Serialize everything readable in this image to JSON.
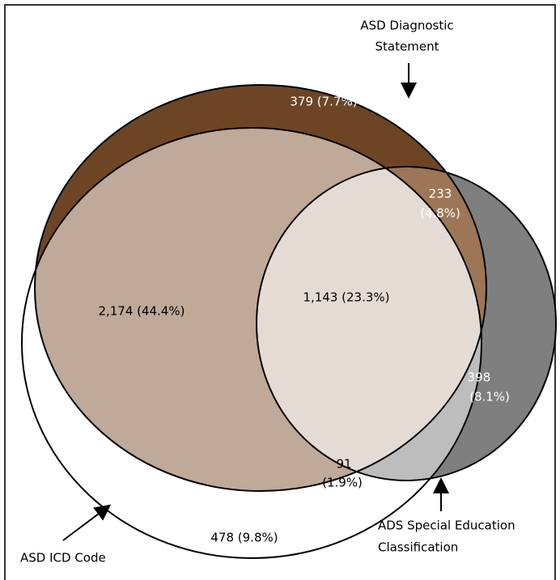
{
  "sets": [
    {
      "lines": [
        "ASD Diagnostic",
        "Statement"
      ]
    },
    {
      "lines": [
        "ASD ICD Code"
      ]
    },
    {
      "lines": [
        "ADS Special Education",
        "Classification"
      ]
    }
  ],
  "regions": [
    {
      "lines": [
        "379 (7.7%)"
      ]
    },
    {
      "lines": [
        "233",
        "(4.8%)"
      ]
    },
    {
      "lines": [
        "2,174 (44.4%)"
      ]
    },
    {
      "lines": [
        "1,143 (23.3%)"
      ]
    },
    {
      "lines": [
        "398",
        "(8.1%)"
      ]
    },
    {
      "lines": [
        "91",
        "(1.9%)"
      ]
    },
    {
      "lines": [
        "478 (9.8%)"
      ]
    }
  ]
}
